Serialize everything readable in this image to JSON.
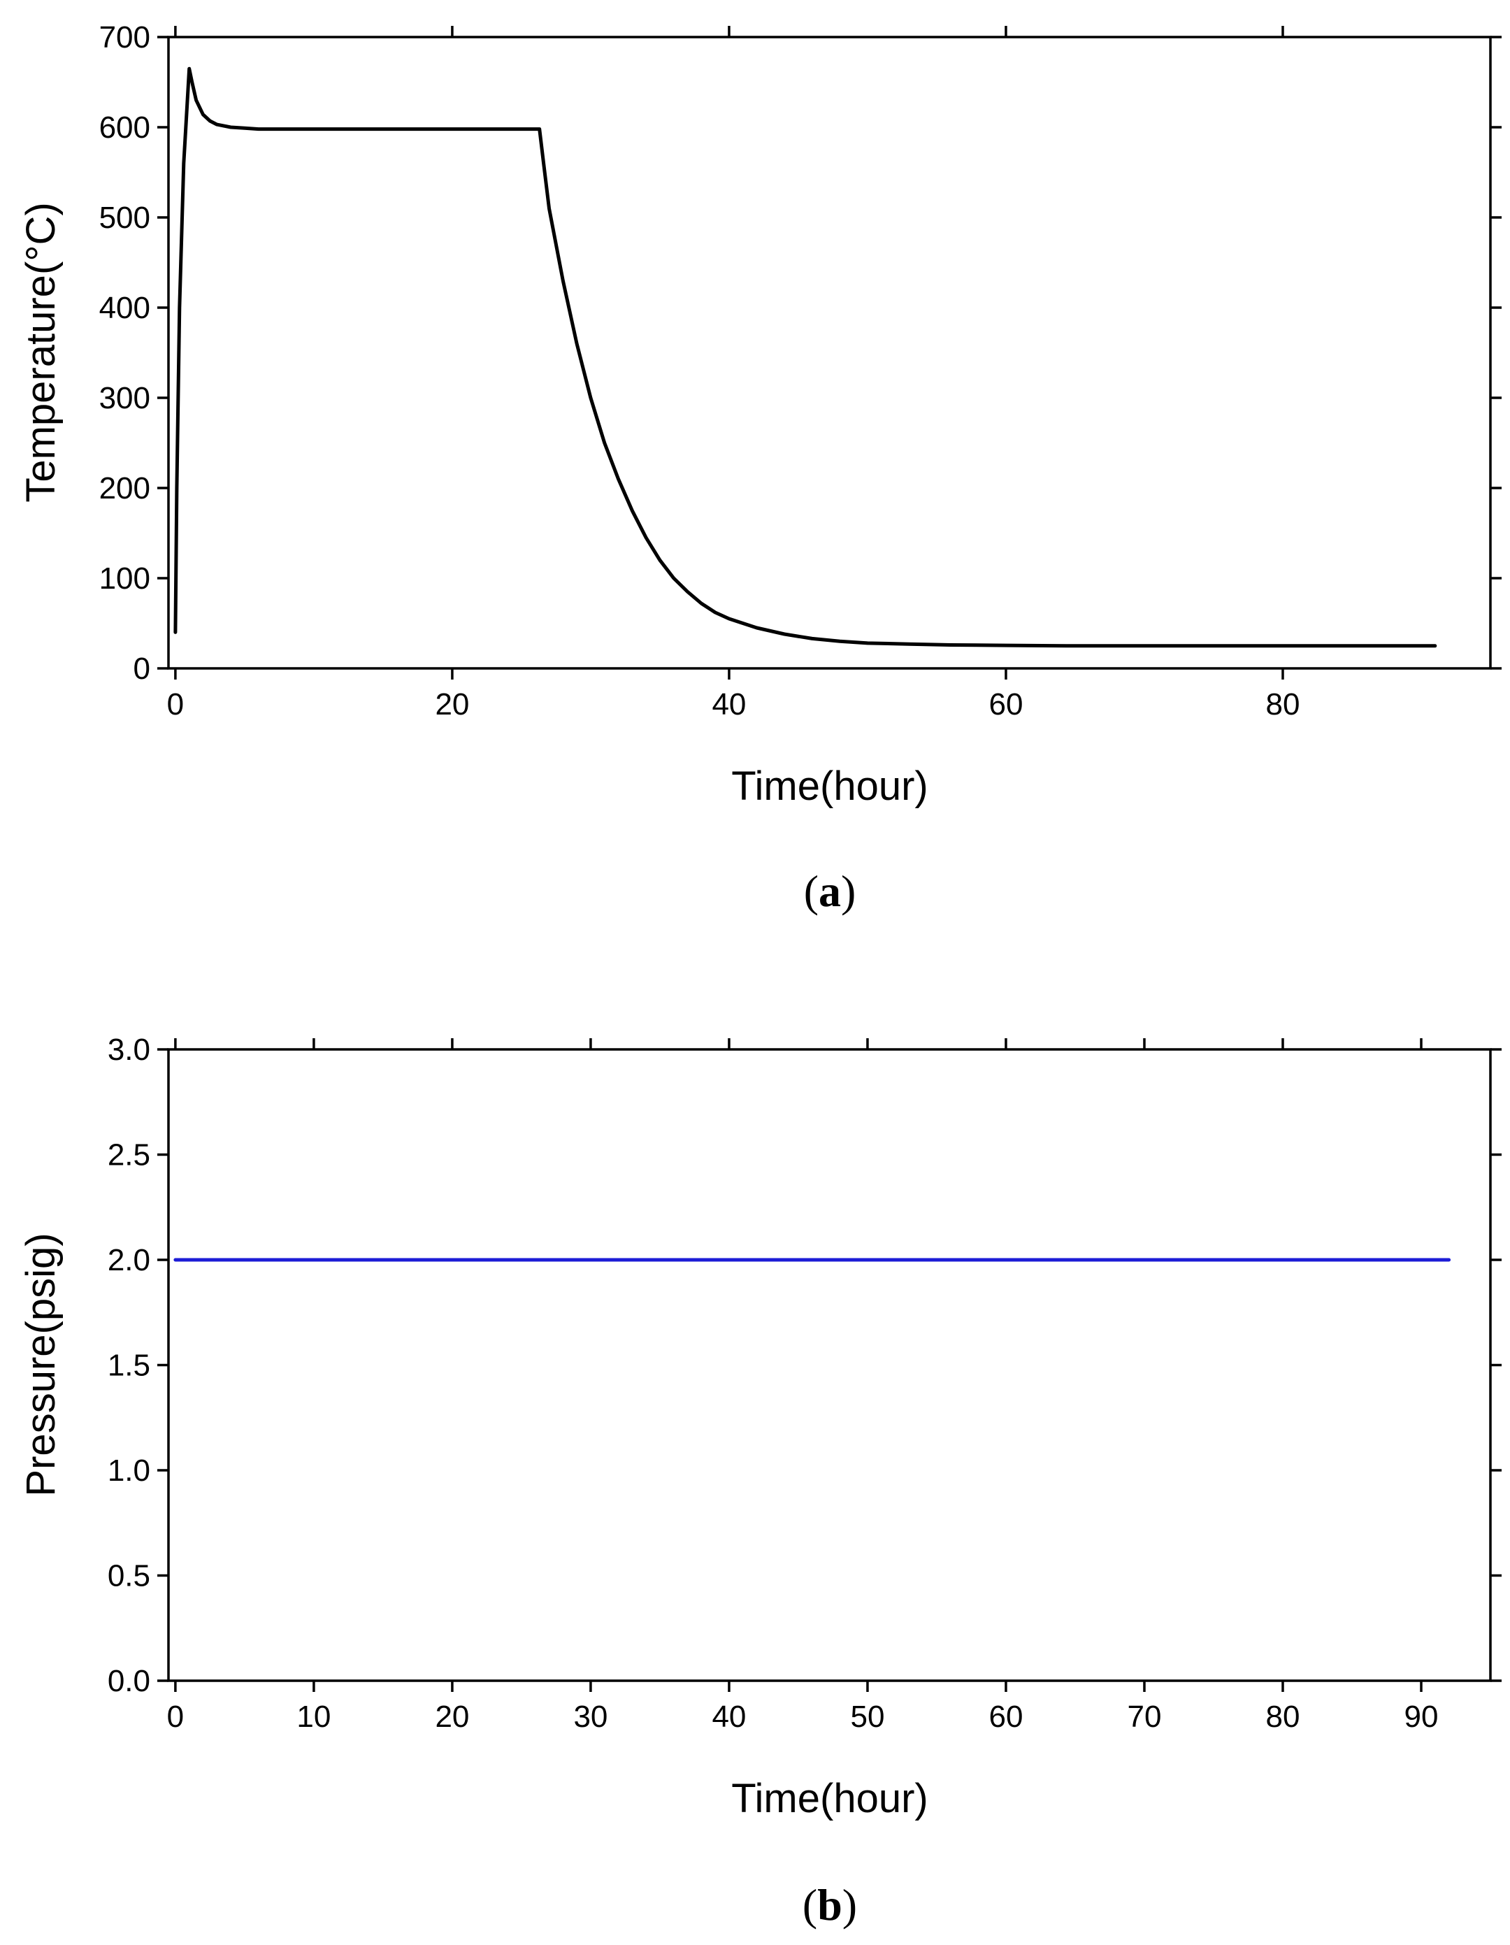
{
  "chart_data": [
    {
      "id": "a",
      "type": "line",
      "caption": "a",
      "xlabel": "Time(hour)",
      "ylabel": "Temperature(°C)",
      "xlim": [
        -0.5,
        95
      ],
      "ylim": [
        0,
        700
      ],
      "xticks": [
        0,
        20,
        40,
        60,
        80
      ],
      "yticks": [
        0,
        100,
        200,
        300,
        400,
        500,
        600,
        700
      ],
      "grid": false,
      "series": [
        {
          "name": "Temperature",
          "color": "#000000",
          "x": [
            0,
            0.1,
            0.3,
            0.6,
            1.0,
            1.2,
            1.5,
            2,
            2.5,
            3,
            4,
            5,
            6,
            8,
            10,
            15,
            20,
            25,
            26.3,
            26.6,
            27,
            28,
            29,
            30,
            31,
            32,
            33,
            34,
            35,
            36,
            37,
            38,
            39,
            40,
            42,
            44,
            46,
            48,
            50,
            53,
            56,
            60,
            65,
            70,
            75,
            80,
            85,
            91
          ],
          "y": [
            40,
            200,
            400,
            560,
            665,
            650,
            630,
            614,
            607,
            603,
            600,
            599,
            598,
            598,
            598,
            598,
            598,
            598,
            598,
            560,
            510,
            430,
            360,
            300,
            250,
            210,
            175,
            145,
            120,
            100,
            85,
            72,
            62,
            55,
            45,
            38,
            33,
            30,
            28,
            27,
            26,
            25.5,
            25,
            25,
            25,
            25,
            25,
            25
          ]
        }
      ]
    },
    {
      "id": "b",
      "type": "line",
      "caption": "b",
      "xlabel": "Time(hour)",
      "ylabel": "Pressure(psig)",
      "xlim": [
        -0.5,
        95
      ],
      "ylim": [
        0,
        3.0
      ],
      "xticks": [
        0,
        10,
        20,
        30,
        40,
        50,
        60,
        70,
        80,
        90
      ],
      "yticks": [
        0.0,
        0.5,
        1.0,
        1.5,
        2.0,
        2.5,
        3.0
      ],
      "grid": false,
      "series": [
        {
          "name": "Pressure",
          "color": "#1c1cd6",
          "x": [
            0,
            92
          ],
          "y": [
            2.0,
            2.0
          ]
        }
      ]
    }
  ]
}
